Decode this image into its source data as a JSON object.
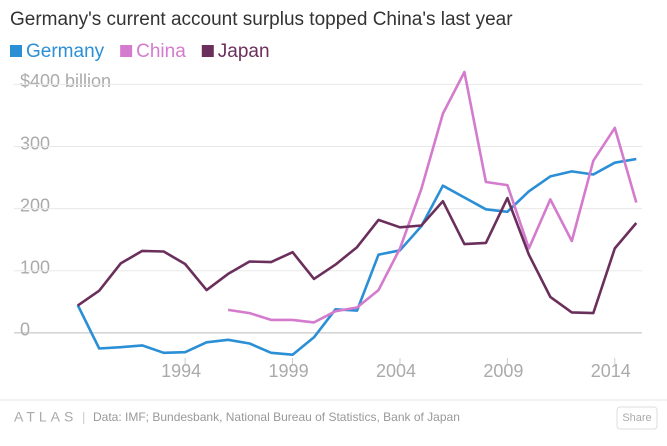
{
  "chart_data": {
    "type": "line",
    "title": "Germany's current account surplus topped China's last year",
    "x": [
      1989,
      1990,
      1991,
      1992,
      1993,
      1994,
      1995,
      1996,
      1997,
      1998,
      1999,
      2000,
      2001,
      2002,
      2003,
      2004,
      2005,
      2006,
      2007,
      2008,
      2009,
      2010,
      2011,
      2012,
      2013,
      2014,
      2015
    ],
    "series": [
      {
        "name": "Germany",
        "color": "#2b8fd6",
        "values": [
          45,
          -25,
          -23,
          -20,
          -32,
          -31,
          -15,
          -11,
          -17,
          -32,
          -35,
          -7,
          38,
          36,
          126,
          133,
          172,
          237,
          218,
          199,
          195,
          228,
          252,
          260,
          255,
          274,
          280
        ]
      },
      {
        "name": "China",
        "color": "#d47bcd",
        "values": [
          null,
          null,
          null,
          null,
          null,
          null,
          null,
          37,
          32,
          21,
          21,
          17,
          35,
          41,
          69,
          136,
          232,
          353,
          420,
          243,
          238,
          136,
          215,
          148,
          277,
          330,
          210
        ]
      },
      {
        "name": "Japan",
        "color": "#6b2f5c",
        "values": [
          44,
          68,
          112,
          132,
          131,
          111,
          69,
          95,
          115,
          114,
          130,
          87,
          110,
          138,
          182,
          170,
          173,
          212,
          143,
          145,
          217,
          126,
          58,
          33,
          32,
          136,
          177
        ]
      }
    ],
    "xlim": [
      1988.5,
      2015.5
    ],
    "xticks": [
      1994,
      1999,
      2004,
      2009,
      2014
    ],
    "ylim": [
      -50,
      420
    ],
    "yticks": [
      0,
      100,
      200,
      300,
      {
        "value": 400,
        "label": "$400 billion"
      }
    ],
    "grid": true
  },
  "footer": {
    "logo": "ATLAS",
    "source": "Data:  IMF; Bundesbank, National Bureau of Statistics, Bank of Japan",
    "button": "Share"
  }
}
